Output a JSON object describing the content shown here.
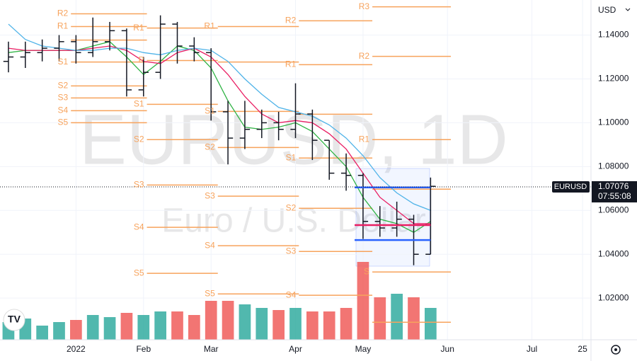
{
  "chart_data": {
    "type": "ohlc",
    "symbol": "USD",
    "watermark": "EURUSD, 1D",
    "watermark_sub": "Euro / U.S. Dollar",
    "categories": [
      null,
      null,
      null,
      null,
      "2022",
      null,
      null,
      null,
      "Feb",
      null,
      null,
      null,
      "Mar",
      null,
      null,
      null,
      null,
      "Apr",
      null,
      null,
      null,
      "May",
      null,
      null,
      null,
      null,
      "Jun",
      null,
      null,
      null,
      null,
      "Jul",
      null,
      null,
      "25"
    ],
    "open": [
      1.128,
      1.13,
      1.132,
      1.134,
      1.137,
      1.132,
      1.137,
      1.142,
      1.115,
      1.123,
      1.145,
      1.135,
      1.132,
      1.105,
      1.093,
      1.097,
      1.1,
      1.097,
      1.104,
      1.092,
      1.077,
      1.076,
      1.055,
      1.052,
      1.056,
      1.04,
      null,
      null,
      null,
      null,
      null,
      null,
      null,
      null,
      null
    ],
    "high": [
      1.137,
      1.137,
      1.138,
      1.14,
      1.14,
      1.148,
      1.146,
      1.143,
      1.13,
      1.149,
      1.146,
      1.139,
      1.134,
      1.11,
      1.11,
      1.106,
      1.105,
      1.118,
      1.106,
      1.092,
      1.086,
      1.077,
      1.062,
      1.064,
      1.058,
      1.075,
      null,
      null,
      null,
      null,
      null,
      null,
      null,
      null,
      null
    ],
    "low": [
      1.123,
      1.125,
      1.128,
      1.128,
      1.127,
      1.13,
      1.133,
      1.112,
      1.112,
      1.12,
      1.127,
      1.128,
      1.101,
      1.081,
      1.088,
      1.093,
      1.092,
      1.093,
      1.083,
      1.074,
      1.069,
      1.047,
      1.048,
      1.048,
      1.035,
      1.04,
      null,
      null,
      null,
      null,
      null,
      null,
      null,
      null,
      null
    ],
    "close": [
      1.13,
      1.132,
      1.134,
      1.137,
      1.132,
      1.137,
      1.142,
      1.115,
      1.123,
      1.145,
      1.135,
      1.132,
      1.105,
      1.093,
      1.097,
      1.1,
      1.097,
      1.104,
      1.092,
      1.077,
      1.076,
      1.055,
      1.052,
      1.056,
      1.04,
      1.071,
      null,
      null,
      null,
      null,
      null,
      null,
      null,
      null,
      null
    ],
    "bar_color": "#131722",
    "up_color": "#26a69a",
    "down_color": "#ef5350",
    "volume": [
      25,
      30,
      20,
      25,
      28,
      35,
      32,
      38,
      35,
      40,
      40,
      35,
      55,
      55,
      50,
      45,
      42,
      45,
      40,
      40,
      45,
      110,
      60,
      65,
      60,
      45,
      null,
      null,
      null,
      null,
      null,
      null,
      null,
      null,
      null
    ],
    "moving_averages": [
      {
        "color": "#2fb344",
        "values": [
          1.132,
          1.133,
          1.133,
          1.133,
          1.133,
          1.135,
          1.137,
          1.13,
          1.122,
          1.128,
          1.135,
          1.133,
          1.125,
          1.11,
          1.098,
          1.097,
          1.098,
          1.1,
          1.096,
          1.088,
          1.08,
          1.066,
          1.056,
          1.054,
          1.05,
          1.055,
          null,
          null,
          null,
          null,
          null,
          null,
          null,
          null,
          null
        ]
      },
      {
        "color": "#e91e63",
        "values": [
          1.134,
          1.133,
          1.133,
          1.133,
          1.133,
          1.134,
          1.135,
          1.133,
          1.128,
          1.127,
          1.132,
          1.134,
          1.13,
          1.122,
          1.112,
          1.104,
          1.1,
          1.101,
          1.1,
          1.095,
          1.088,
          1.077,
          1.066,
          1.06,
          1.054,
          1.054,
          null,
          null,
          null,
          null,
          null,
          null,
          null,
          null,
          null
        ]
      },
      {
        "color": "#4fb3e8",
        "values": [
          1.145,
          1.138,
          1.135,
          1.134,
          1.133,
          1.133,
          1.134,
          1.134,
          1.132,
          1.131,
          1.133,
          1.134,
          1.133,
          1.128,
          1.12,
          1.113,
          1.107,
          1.105,
          1.103,
          1.099,
          1.093,
          1.085,
          1.075,
          1.068,
          1.063,
          1.06,
          null,
          null,
          null,
          null,
          null,
          null,
          null,
          null,
          null
        ]
      }
    ],
    "pivot_color": "#f7a35c",
    "pivots": [
      {
        "period": [
          4.2,
          8.7
        ],
        "levels": [
          {
            "label": "R2",
            "value": 1.1497
          },
          {
            "label": "R1",
            "value": 1.1439
          },
          {
            "label": null,
            "value": 1.1377
          },
          {
            "label": "S1",
            "value": 1.1277
          },
          {
            "label": "S2",
            "value": 1.1168
          },
          {
            "label": "S3",
            "value": 1.1113
          },
          {
            "label": "S4",
            "value": 1.1055
          },
          {
            "label": "S5",
            "value": 1.1
          }
        ]
      },
      {
        "period": [
          8.7,
          12.9
        ],
        "levels": [
          {
            "label": "R1",
            "value": 1.1432
          },
          {
            "label": "P",
            "value": 1.1284
          },
          {
            "label": "S1",
            "value": 1.1084
          },
          {
            "label": "S2",
            "value": 1.0923
          },
          {
            "label": "S3",
            "value": 1.0716
          },
          {
            "label": "S4",
            "value": 1.0523
          },
          {
            "label": "S5",
            "value": 1.0313
          }
        ]
      },
      {
        "period": [
          12.9,
          17.7
        ],
        "levels": [
          {
            "label": "R1",
            "value": 1.1439
          },
          {
            "label": null,
            "value": 1.1277
          },
          {
            "label": "S1",
            "value": 1.1052
          },
          {
            "label": "S2",
            "value": 1.0887
          },
          {
            "label": "S3",
            "value": 1.0665
          },
          {
            "label": "S4",
            "value": 1.0439
          },
          {
            "label": "S5",
            "value": 1.0219
          }
        ]
      },
      {
        "period": [
          17.7,
          22.05
        ],
        "levels": [
          {
            "label": "R2",
            "value": 1.1465
          },
          {
            "label": "R1",
            "value": 1.1265
          },
          {
            "label": null,
            "value": 1.1039
          },
          {
            "label": "S1",
            "value": 1.0839
          },
          {
            "label": "S2",
            "value": 1.061
          },
          {
            "label": "S3",
            "value": 1.0413
          },
          {
            "label": "S4",
            "value": 1.0213
          }
        ]
      },
      {
        "period": [
          22.05,
          26.7
        ],
        "levels": [
          {
            "label": "R3",
            "value": 1.1529
          },
          {
            "label": "R2",
            "value": 1.1303
          },
          {
            "label": "R1",
            "value": 1.0923
          },
          {
            "label": null,
            "value": 1.0697
          },
          {
            "label": "S",
            "value": 1.0319
          },
          {
            "label": null,
            "value": 1.009
          }
        ]
      }
    ],
    "lines": [
      {
        "color": "#2962ff",
        "value": 1.0705,
        "range": [
          21,
          25.5
        ]
      },
      {
        "color": "#e91e63",
        "value": 1.0533,
        "range": [
          21,
          25.5
        ]
      },
      {
        "color": "#2962ff",
        "value": 1.0465,
        "range": [
          21,
          25.5
        ]
      }
    ],
    "last_price": {
      "value": 1.07076,
      "label": "1.07076",
      "countdown": "07:55:08",
      "tag": "EURUSD"
    },
    "ylim": [
      1.001,
      1.156
    ],
    "yticks": [
      {
        "value": 1.02,
        "label": "1.02000"
      },
      {
        "value": 1.04,
        "label": "1.04000"
      },
      {
        "value": 1.06,
        "label": "1.06000"
      },
      {
        "value": 1.08,
        "label": "1.08000"
      },
      {
        "value": 1.1,
        "label": "1.10000"
      },
      {
        "value": 1.12,
        "label": "1.12000"
      },
      {
        "value": 1.14,
        "label": "1.14000"
      }
    ],
    "grid": true
  }
}
